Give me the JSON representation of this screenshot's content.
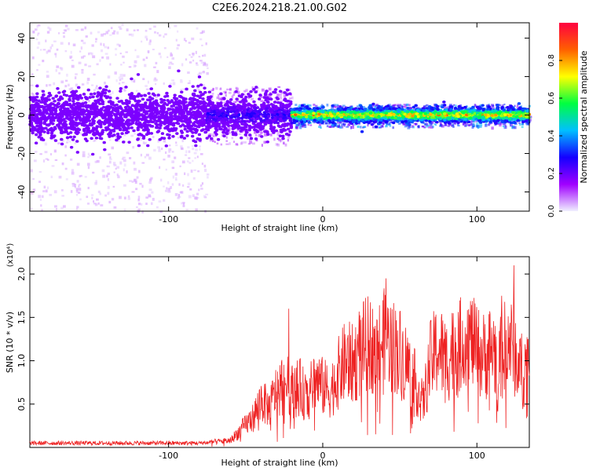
{
  "title": "C2E6.2024.218.21.00.G02",
  "chart_data": [
    {
      "type": "heatmap",
      "xlabel": "Height of straight line (km)",
      "ylabel": "Frequency (Hz)",
      "xlim": [
        -190,
        134
      ],
      "ylim": [
        -50,
        48
      ],
      "xticks": [
        -100,
        0,
        100
      ],
      "yticks": [
        -40,
        -20,
        0,
        20,
        40
      ],
      "colorbar": {
        "label": "Normalized spectral amplitude",
        "range": [
          0,
          1
        ],
        "ticks": [
          0.0,
          0.2,
          0.4,
          0.6,
          0.8
        ],
        "tick_labels": [
          "0.0",
          "0.2",
          "0.4",
          "0.6",
          "0.8"
        ],
        "colormap": [
          "#f0f0ff",
          "#a000ff",
          "#1400ff",
          "#00c0ff",
          "#00ff40",
          "#ffff00",
          "#ff6000",
          "#ff0040"
        ]
      },
      "bands": [
        {
          "x_range": [
            -190,
            -75
          ],
          "freq_center": 0,
          "core_halfwidth_hz": 10,
          "scatter_range_hz": [
            -50,
            48
          ],
          "amplitude": 0.12
        },
        {
          "x_range": [
            -75,
            -20
          ],
          "freq_center": 0,
          "core_halfwidth_hz": 8,
          "scatter_range_hz": [
            -15,
            15
          ],
          "amplitude": 0.3
        },
        {
          "x_range": [
            -20,
            134
          ],
          "freq_center": 0,
          "core_halfwidth_hz": 3,
          "scatter_range_hz": [
            -6,
            6
          ],
          "amplitude": 0.9
        }
      ]
    },
    {
      "type": "line",
      "xlabel": "Height of straight line (km)",
      "ylabel": "SNR (10 * v/v)",
      "y_multiplier_label": "(x10⁴)",
      "xlim": [
        -190,
        134
      ],
      "ylim": [
        0,
        2.2
      ],
      "xticks": [
        -100,
        0,
        100
      ],
      "yticks": [
        0.5,
        1.0,
        1.5,
        2.0
      ],
      "ytick_labels": [
        "0.5",
        "1.0",
        "1.5",
        "2.0"
      ],
      "color": "#ee2222",
      "series": [
        {
          "x": [
            -190,
            -150,
            -110,
            -80,
            -60,
            -45,
            -40,
            -35,
            -30,
            -25,
            -20,
            -15,
            -10,
            -5,
            0,
            5,
            10,
            15,
            20,
            25,
            30,
            35,
            40,
            45,
            50,
            55,
            60,
            65,
            70,
            75,
            80,
            85,
            90,
            95,
            100,
            105,
            110,
            115,
            120,
            125,
            130,
            134
          ],
          "y": [
            0.05,
            0.05,
            0.05,
            0.05,
            0.08,
            0.35,
            0.55,
            0.45,
            0.65,
            0.75,
            0.65,
            0.7,
            0.55,
            0.8,
            0.7,
            0.65,
            0.85,
            1.0,
            0.95,
            1.15,
            1.2,
            1.1,
            1.3,
            1.2,
            1.1,
            0.95,
            0.75,
            0.5,
            1.0,
            1.15,
            1.0,
            1.1,
            1.2,
            1.3,
            1.1,
            1.05,
            1.15,
            1.0,
            1.25,
            1.1,
            0.85,
            1.1
          ]
        }
      ],
      "peaks": [
        {
          "x": -22,
          "y": 1.6
        },
        {
          "x": 41,
          "y": 1.95
        },
        {
          "x": 84,
          "y": 1.55
        },
        {
          "x": 116,
          "y": 1.75
        },
        {
          "x": 124,
          "y": 2.1
        }
      ]
    }
  ]
}
